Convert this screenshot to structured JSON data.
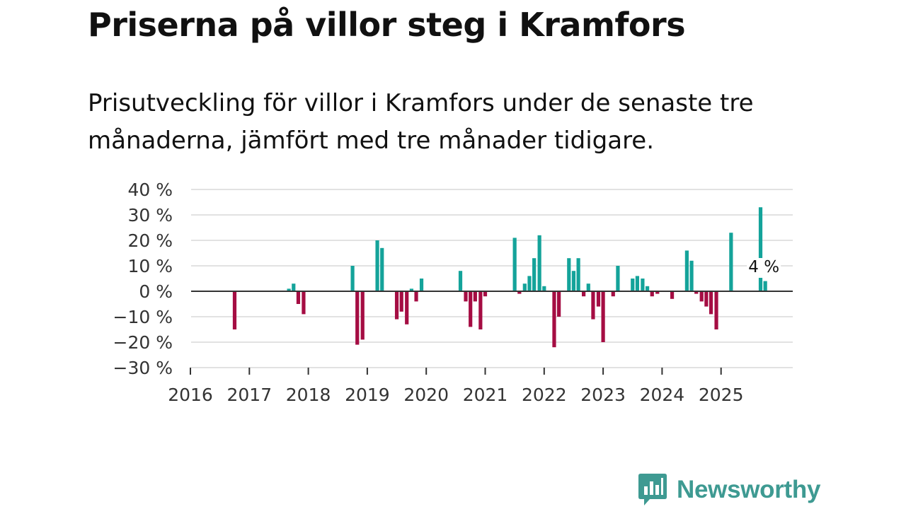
{
  "header": {
    "title": "Priserna på villor steg i Kramfors",
    "subtitle": "Prisutveckling för villor i Kramfors under de senaste tre månaderna, jämfört med tre månader tidigare."
  },
  "brand": {
    "name": "Newsworthy",
    "icon": "newsworthy-logo-icon"
  },
  "colors": {
    "positive": "#14a39a",
    "negative": "#a50d43",
    "grid": "#d9d9d9",
    "axis": "#333333"
  },
  "chart_data": {
    "type": "bar",
    "title": "Priserna på villor steg i Kramfors",
    "xlabel": "",
    "ylabel": "",
    "ylim": [
      -30,
      40
    ],
    "yticks": [
      40,
      30,
      20,
      10,
      0,
      -10,
      -20,
      -30
    ],
    "ytick_labels": [
      "40 %",
      "30 %",
      "20 %",
      "10 %",
      "0 %",
      "−10 %",
      "−20 %",
      "−30 %"
    ],
    "xlim": [
      2016.0,
      2026.25
    ],
    "xticks": [
      "2016",
      "2017",
      "2018",
      "2019",
      "2020",
      "2021",
      "2022",
      "2023",
      "2024",
      "2025"
    ],
    "annotation": {
      "text": "4 %",
      "date": 2025.75,
      "value": 4
    },
    "series": [
      {
        "name": "Prisutveckling (%)",
        "points": [
          {
            "date": 2016.75,
            "value": -15
          },
          {
            "date": 2017.67,
            "value": 1
          },
          {
            "date": 2017.75,
            "value": 3
          },
          {
            "date": 2017.83,
            "value": -5
          },
          {
            "date": 2017.92,
            "value": -9
          },
          {
            "date": 2018.75,
            "value": 10
          },
          {
            "date": 2018.83,
            "value": -21
          },
          {
            "date": 2018.92,
            "value": -19
          },
          {
            "date": 2019.17,
            "value": 20
          },
          {
            "date": 2019.25,
            "value": 17
          },
          {
            "date": 2019.5,
            "value": -11
          },
          {
            "date": 2019.58,
            "value": -8
          },
          {
            "date": 2019.67,
            "value": -13
          },
          {
            "date": 2019.75,
            "value": 1
          },
          {
            "date": 2019.83,
            "value": -4
          },
          {
            "date": 2019.92,
            "value": 5
          },
          {
            "date": 2020.58,
            "value": 8
          },
          {
            "date": 2020.67,
            "value": -4
          },
          {
            "date": 2020.75,
            "value": -14
          },
          {
            "date": 2020.83,
            "value": -4
          },
          {
            "date": 2020.92,
            "value": -15
          },
          {
            "date": 2021.0,
            "value": -2
          },
          {
            "date": 2021.5,
            "value": 21
          },
          {
            "date": 2021.58,
            "value": -1
          },
          {
            "date": 2021.67,
            "value": 3
          },
          {
            "date": 2021.75,
            "value": 6
          },
          {
            "date": 2021.83,
            "value": 13
          },
          {
            "date": 2021.92,
            "value": 22
          },
          {
            "date": 2022.0,
            "value": 2
          },
          {
            "date": 2022.17,
            "value": -22
          },
          {
            "date": 2022.25,
            "value": -10
          },
          {
            "date": 2022.42,
            "value": 13
          },
          {
            "date": 2022.5,
            "value": 8
          },
          {
            "date": 2022.58,
            "value": 13
          },
          {
            "date": 2022.67,
            "value": -2
          },
          {
            "date": 2022.75,
            "value": 3
          },
          {
            "date": 2022.83,
            "value": -11
          },
          {
            "date": 2022.92,
            "value": -6
          },
          {
            "date": 2023.0,
            "value": -20
          },
          {
            "date": 2023.17,
            "value": -2
          },
          {
            "date": 2023.25,
            "value": 10
          },
          {
            "date": 2023.5,
            "value": 5
          },
          {
            "date": 2023.58,
            "value": 6
          },
          {
            "date": 2023.67,
            "value": 5
          },
          {
            "date": 2023.75,
            "value": 2
          },
          {
            "date": 2023.83,
            "value": -2
          },
          {
            "date": 2023.92,
            "value": -1
          },
          {
            "date": 2024.17,
            "value": -3
          },
          {
            "date": 2024.42,
            "value": 16
          },
          {
            "date": 2024.5,
            "value": 12
          },
          {
            "date": 2024.58,
            "value": -1
          },
          {
            "date": 2024.67,
            "value": -4
          },
          {
            "date": 2024.75,
            "value": -6
          },
          {
            "date": 2024.83,
            "value": -9
          },
          {
            "date": 2024.92,
            "value": -15
          },
          {
            "date": 2025.17,
            "value": 23
          },
          {
            "date": 2025.67,
            "value": 33
          },
          {
            "date": 2025.75,
            "value": 4
          }
        ]
      }
    ]
  }
}
